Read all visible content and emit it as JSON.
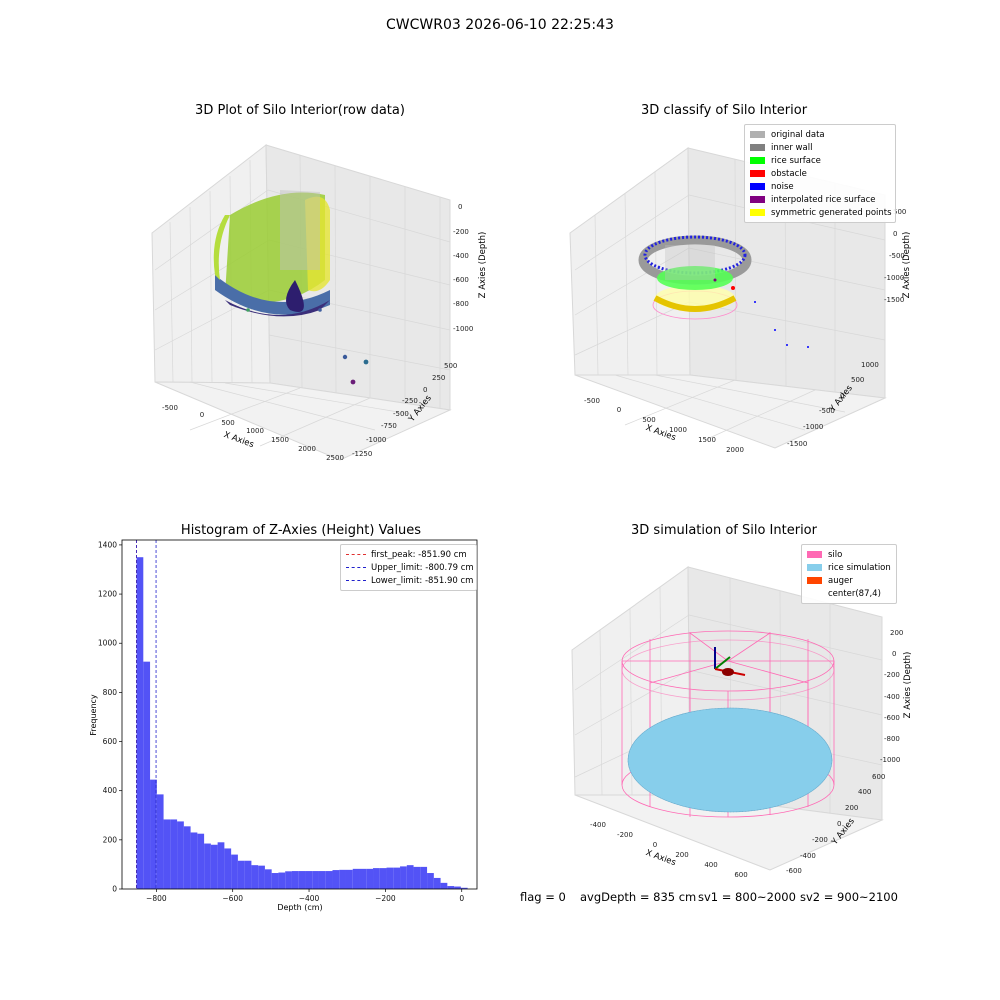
{
  "suptitle": "CWCWR03 2026-06-10 22:25:43",
  "footer": {
    "flag": "flag = 0",
    "avg": "avgDepth = 835 cm",
    "sv1": "sv1 = 800~2000",
    "sv2": "sv2 = 900~2100"
  },
  "colors": {
    "hist_bar": "#4a4af5",
    "first_peak": "#e03030",
    "limits": "#2020cc",
    "silo": "#ff69b4",
    "rice": "#87ceeb",
    "auger": "#ff4500"
  },
  "chart_data": [
    {
      "type": "scatter",
      "plot": "scatter3d",
      "title": "3D Plot of Silo Interior(row data)",
      "xlabel": "X Axies",
      "ylabel": "Y Axies",
      "zlabel": "Z Axies (Depth)",
      "x_ticks": [
        "-500",
        "0",
        "500",
        "1000",
        "1500",
        "2000",
        "2500"
      ],
      "y_ticks": [
        "500",
        "250",
        "0",
        "-250",
        "-500",
        "-750",
        "-1000",
        "-1250"
      ],
      "z_ticks": [
        "0",
        "-200",
        "-400",
        "-600",
        "-800",
        "-1000"
      ],
      "grid": true
    },
    {
      "type": "scatter",
      "plot": "scatter3d",
      "title": "3D classify of Silo Interior",
      "xlabel": "X Axies",
      "ylabel": "Y Axies",
      "zlabel": "Z Axies (Depth)",
      "x_ticks": [
        "-500",
        "0",
        "500",
        "1000",
        "1500",
        "2000"
      ],
      "y_ticks": [
        "1000",
        "500",
        "0",
        "-500",
        "-1000",
        "-1500"
      ],
      "z_ticks": [
        "500",
        "0",
        "-500",
        "-1000",
        "-1500"
      ],
      "legend": [
        {
          "label": "original data",
          "color": "#b0b0b0"
        },
        {
          "label": "inner wall",
          "color": "#808080"
        },
        {
          "label": "rice surface",
          "color": "#00ff00"
        },
        {
          "label": "obstacle",
          "color": "#ff0000"
        },
        {
          "label": "noise",
          "color": "#0000ff"
        },
        {
          "label": "interpolated rice surface",
          "color": "#800080"
        },
        {
          "label": "symmetric generated points",
          "color": "#ffff00"
        }
      ],
      "legend_position": "top-right",
      "grid": true
    },
    {
      "type": "bar",
      "plot": "histogram",
      "title": "Histogram of Z-Axies (Height) Values",
      "xlabel": "Depth (cm)",
      "ylabel": "Frequency",
      "xlim": [
        -890,
        40
      ],
      "ylim": [
        0,
        1420
      ],
      "x_ticks": [
        -800,
        -600,
        -400,
        -200,
        0
      ],
      "y_ticks": [
        0,
        200,
        400,
        600,
        800,
        1000,
        1200,
        1400
      ],
      "bin_width": 17.7,
      "bin_starts": [
        -851.9,
        -834.2,
        -816.5,
        -798.8,
        -781.1,
        -763.4,
        -745.7,
        -728.0,
        -710.3,
        -692.6,
        -674.9,
        -657.2,
        -639.5,
        -621.8,
        -604.1,
        -586.4,
        -568.7,
        -551.0,
        -533.3,
        -515.6,
        -497.9,
        -480.2,
        -462.5,
        -444.8,
        -427.1,
        -409.4,
        -391.7,
        -374.0,
        -356.3,
        -338.6,
        -320.9,
        -303.2,
        -285.5,
        -267.8,
        -250.1,
        -232.4,
        -214.7,
        -197.0,
        -179.3,
        -161.6,
        -143.9,
        -126.2,
        -108.5,
        -90.8,
        -73.1,
        -55.4,
        -37.7,
        -20.0,
        -2.3
      ],
      "values": [
        1350,
        925,
        445,
        385,
        283,
        283,
        275,
        255,
        230,
        225,
        185,
        180,
        190,
        165,
        140,
        115,
        115,
        97,
        95,
        80,
        65,
        67,
        72,
        73,
        73,
        73,
        73,
        73,
        73,
        77,
        78,
        78,
        82,
        82,
        82,
        85,
        85,
        87,
        87,
        92,
        97,
        90,
        90,
        65,
        45,
        25,
        12,
        10,
        5
      ],
      "lines": [
        {
          "label": "first_peak: -851.90 cm",
          "x": -851.9,
          "color": "#e03030"
        },
        {
          "label": "Upper_limit: -800.79 cm",
          "x": -800.79,
          "color": "#2020cc"
        },
        {
          "label": "Lower_limit: -851.90 cm",
          "x": -851.9,
          "color": "#2020cc"
        }
      ],
      "legend_position": "top-right"
    },
    {
      "type": "scatter",
      "plot": "surface3d",
      "title": "3D simulation of Silo Interior",
      "xlabel": "X Axies",
      "ylabel": "Y Axies",
      "zlabel": "Z Axies (Depth)",
      "x_ticks": [
        "-400",
        "-200",
        "0",
        "200",
        "400",
        "600"
      ],
      "y_ticks": [
        "600",
        "400",
        "200",
        "0",
        "-200",
        "-400",
        "-600"
      ],
      "z_ticks": [
        "200",
        "0",
        "-200",
        "-400",
        "-600",
        "-800",
        "-1000"
      ],
      "legend": [
        {
          "label": "silo",
          "color": "#ff69b4"
        },
        {
          "label": "rice simulation",
          "color": "#87ceeb"
        },
        {
          "label": "auger",
          "color": "#ff4500"
        },
        {
          "label": "center(87,4)",
          "color": ""
        }
      ],
      "legend_position": "top-right",
      "grid": true
    }
  ]
}
